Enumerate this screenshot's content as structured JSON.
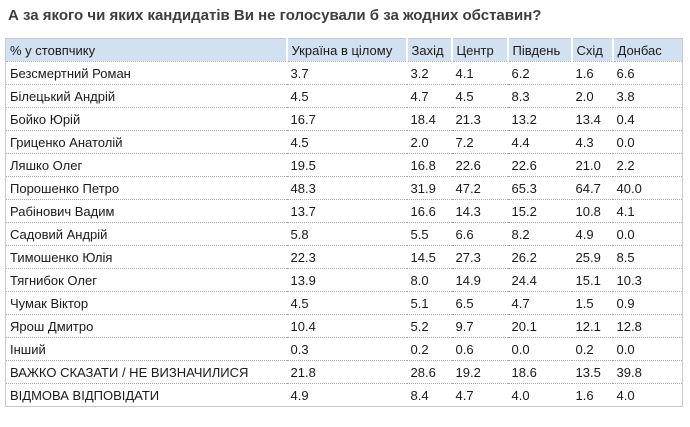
{
  "chart_data": {
    "type": "table",
    "title": "А за якого чи яких кандидатів Ви не голосували б за жодних обставин?",
    "corner_label": "% у стовпчику",
    "columns": [
      "Україна в цілому",
      "Захід",
      "Центр",
      "Південь",
      "Схід",
      "Донбас"
    ],
    "rows": [
      {
        "label": "Безсмертний Роман",
        "values": [
          "3.7",
          "3.2",
          "4.1",
          "6.2",
          "1.6",
          "6.6"
        ]
      },
      {
        "label": "Білецький Андрій",
        "values": [
          "4.5",
          "4.7",
          "4.5",
          "8.3",
          "2.0",
          "3.8"
        ]
      },
      {
        "label": "Бойко Юрій",
        "values": [
          "16.7",
          "18.4",
          "21.3",
          "13.2",
          "13.4",
          "0.4"
        ]
      },
      {
        "label": "Гриценко Анатолій",
        "values": [
          "4.5",
          "2.0",
          "7.2",
          "4.4",
          "4.3",
          "0.0"
        ]
      },
      {
        "label": "Ляшко Олег",
        "values": [
          "19.5",
          "16.8",
          "22.6",
          "22.6",
          "21.0",
          "2.2"
        ]
      },
      {
        "label": "Порошенко Петро",
        "values": [
          "48.3",
          "31.9",
          "47.2",
          "65.3",
          "64.7",
          "40.0"
        ]
      },
      {
        "label": "Рабінович Вадим",
        "values": [
          "13.7",
          "16.6",
          "14.3",
          "15.2",
          "10.8",
          "4.1"
        ]
      },
      {
        "label": "Садовий Андрій",
        "values": [
          "5.8",
          "5.5",
          "6.6",
          "8.2",
          "4.9",
          "0.0"
        ]
      },
      {
        "label": "Тимошенко Юлія",
        "values": [
          "22.3",
          "14.5",
          "27.3",
          "26.2",
          "25.9",
          "8.5"
        ]
      },
      {
        "label": "Тягнибок Олег",
        "values": [
          "13.9",
          "8.0",
          "14.9",
          "24.4",
          "15.1",
          "10.3"
        ]
      },
      {
        "label": "Чумак Віктор",
        "values": [
          "4.5",
          "5.1",
          "6.5",
          "4.7",
          "1.5",
          "0.9"
        ]
      },
      {
        "label": "Ярош Дмитро",
        "values": [
          "10.4",
          "5.2",
          "9.7",
          "20.1",
          "12.1",
          "12.8"
        ]
      },
      {
        "label": "Інший",
        "values": [
          "0.3",
          "0.2",
          "0.6",
          "0.0",
          "0.2",
          "0.0"
        ]
      },
      {
        "label": "ВАЖКО СКАЗАТИ / НЕ ВИЗНАЧИЛИСЯ",
        "values": [
          "21.8",
          "28.6",
          "19.2",
          "18.6",
          "13.5",
          "39.8"
        ]
      },
      {
        "label": "ВІДМОВА ВІДПОВІДАТИ",
        "values": [
          "4.9",
          "8.4",
          "4.7",
          "4.0",
          "1.6",
          "4.0"
        ]
      }
    ]
  },
  "colors": {
    "header_background": "#d2e1f1",
    "title_text": "#3d3d3d",
    "body_text": "#1a1a1a",
    "row_separator": "#a8a8a8",
    "table_border": "#c9c9c9"
  }
}
